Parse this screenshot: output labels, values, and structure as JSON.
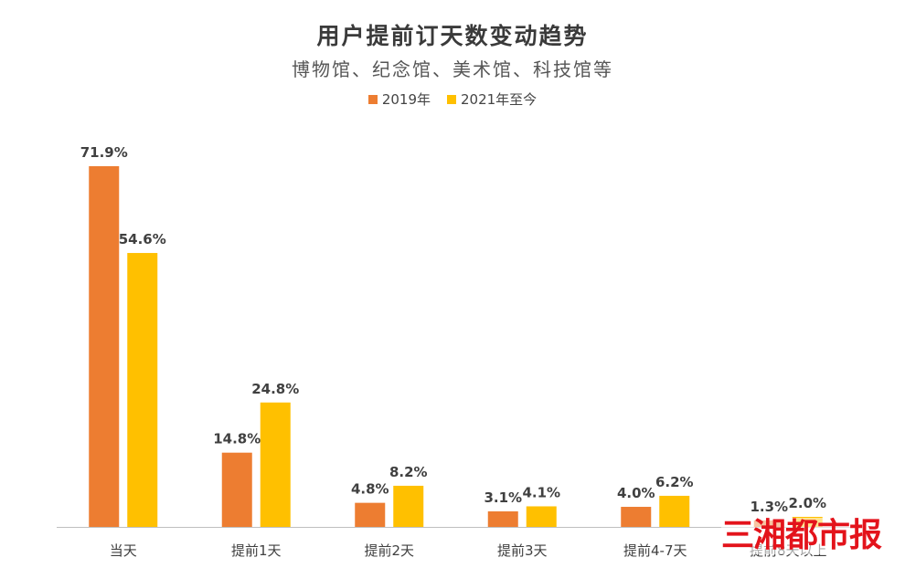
{
  "title": "用户提前订天数变动趋势",
  "subtitle": "博物馆、纪念馆、美术馆、科技馆等",
  "watermark": "三湘都市报",
  "colors": {
    "series_2019": "#ED7D31",
    "series_2021": "#FFC000",
    "axis": "#BFBFBF",
    "label": "#404040"
  },
  "chart_data": {
    "type": "bar",
    "title": "用户提前订天数变动趋势",
    "subtitle": "博物馆、纪念馆、美术馆、科技馆等",
    "categories": [
      "当天",
      "提前1天",
      "提前2天",
      "提前3天",
      "提前4-7天",
      "提前8天以上"
    ],
    "series": [
      {
        "name": "2019年",
        "values": [
          71.9,
          14.8,
          4.8,
          3.1,
          4.0,
          1.3
        ],
        "labels": [
          "71.9%",
          "14.8%",
          "4.8%",
          "3.1%",
          "4.0%",
          "1.3%"
        ]
      },
      {
        "name": "2021年至今",
        "values": [
          54.6,
          24.8,
          8.2,
          4.1,
          6.2,
          2.0
        ],
        "labels": [
          "54.6%",
          "24.8%",
          "8.2%",
          "4.1%",
          "6.2%",
          "2.0%"
        ]
      }
    ],
    "ylim": [
      0,
      75
    ],
    "grid": false,
    "legend_position": "top"
  }
}
